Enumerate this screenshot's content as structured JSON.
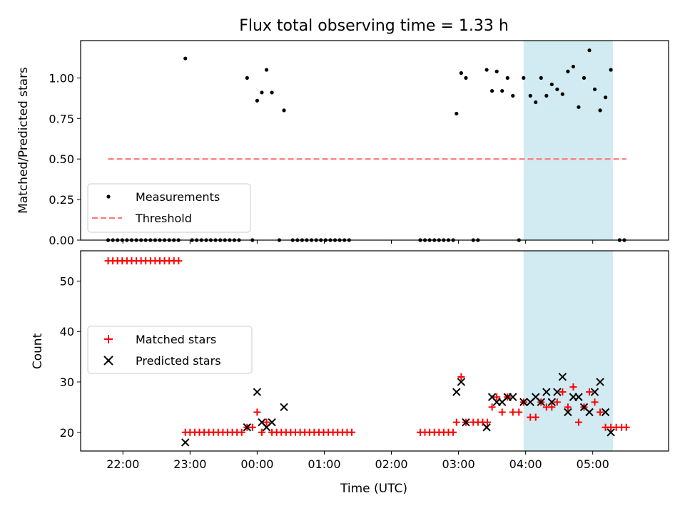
{
  "chart_data": [
    {
      "type": "scatter",
      "title": "Flux total observing time = 1.33 h",
      "xlabel": "",
      "ylabel": "Matched/Predicted stars",
      "xlim": [
        -1.63,
        7.13
      ],
      "ylim": [
        0.0,
        1.23
      ],
      "yticks": [
        0.0,
        0.25,
        0.5,
        0.75,
        1.0
      ],
      "ytick_labels": [
        "0.00",
        "0.25",
        "0.50",
        "0.75",
        "1.00"
      ],
      "xticks": [
        -1,
        0,
        1,
        2,
        3,
        4,
        5,
        6
      ],
      "highlight": {
        "x0": 4.97,
        "x1": 6.3,
        "color": "#add8e6"
      },
      "grid": false,
      "legend_position": "lower-left",
      "series": [
        {
          "name": "Measurements",
          "style": "dot",
          "color": "#000000",
          "points": [
            [
              -1.22,
              0
            ],
            [
              -1.15,
              0
            ],
            [
              -1.08,
              0
            ],
            [
              -1.01,
              0
            ],
            [
              -0.94,
              0
            ],
            [
              -0.87,
              0
            ],
            [
              -0.8,
              0
            ],
            [
              -0.73,
              0
            ],
            [
              -0.66,
              0
            ],
            [
              -0.59,
              0
            ],
            [
              -0.52,
              0
            ],
            [
              -0.45,
              0
            ],
            [
              -0.38,
              0
            ],
            [
              -0.31,
              0
            ],
            [
              -0.24,
              0
            ],
            [
              -0.17,
              0
            ],
            [
              -0.07,
              1.12
            ],
            [
              0.03,
              0
            ],
            [
              0.1,
              0
            ],
            [
              0.17,
              0
            ],
            [
              0.24,
              0
            ],
            [
              0.31,
              0
            ],
            [
              0.38,
              0
            ],
            [
              0.45,
              0
            ],
            [
              0.52,
              0
            ],
            [
              0.59,
              0
            ],
            [
              0.66,
              0
            ],
            [
              0.73,
              0
            ],
            [
              0.85,
              1.0
            ],
            [
              0.93,
              0
            ],
            [
              1.0,
              0.86
            ],
            [
              1.07,
              0.91
            ],
            [
              1.14,
              1.05
            ],
            [
              1.22,
              0.91
            ],
            [
              1.33,
              0
            ],
            [
              1.4,
              0.8
            ],
            [
              1.53,
              0
            ],
            [
              1.6,
              0
            ],
            [
              1.67,
              0
            ],
            [
              1.74,
              0
            ],
            [
              1.81,
              0
            ],
            [
              1.88,
              0
            ],
            [
              1.95,
              0
            ],
            [
              2.02,
              0
            ],
            [
              2.09,
              0
            ],
            [
              2.16,
              0
            ],
            [
              2.23,
              0
            ],
            [
              2.3,
              0
            ],
            [
              2.37,
              0
            ],
            [
              3.43,
              0
            ],
            [
              3.5,
              0
            ],
            [
              3.57,
              0
            ],
            [
              3.64,
              0
            ],
            [
              3.71,
              0
            ],
            [
              3.78,
              0
            ],
            [
              3.85,
              0
            ],
            [
              3.92,
              0
            ],
            [
              3.97,
              0.78
            ],
            [
              4.04,
              1.03
            ],
            [
              4.11,
              1.0
            ],
            [
              4.22,
              0
            ],
            [
              4.29,
              0
            ],
            [
              4.42,
              1.05
            ],
            [
              4.5,
              0.92
            ],
            [
              4.57,
              1.04
            ],
            [
              4.65,
              0.92
            ],
            [
              4.73,
              1.0
            ],
            [
              4.81,
              0.89
            ],
            [
              4.9,
              0
            ],
            [
              4.97,
              1.0
            ],
            [
              5.07,
              0.89
            ],
            [
              5.15,
              0.85
            ],
            [
              5.23,
              1.0
            ],
            [
              5.31,
              0.89
            ],
            [
              5.39,
              0.96
            ],
            [
              5.47,
              0.93
            ],
            [
              5.55,
              0.9
            ],
            [
              5.63,
              1.04
            ],
            [
              5.71,
              1.07
            ],
            [
              5.79,
              0.82
            ],
            [
              5.87,
              1.0
            ],
            [
              5.95,
              1.17
            ],
            [
              6.03,
              0.93
            ],
            [
              6.11,
              0.8
            ],
            [
              6.19,
              0.88
            ],
            [
              6.27,
              1.05
            ],
            [
              6.4,
              0
            ],
            [
              6.47,
              0
            ]
          ]
        },
        {
          "name": "Threshold",
          "style": "dashed-line",
          "color": "#ff7777",
          "points": [
            [
              -1.22,
              0.5
            ],
            [
              6.5,
              0.5
            ]
          ]
        }
      ]
    },
    {
      "type": "scatter",
      "title": "",
      "xlabel": "Time (UTC)",
      "ylabel": "Count",
      "xlim": [
        -1.63,
        7.13
      ],
      "ylim": [
        16.3,
        56.0
      ],
      "yticks": [
        20,
        30,
        40,
        50
      ],
      "ytick_labels": [
        "20",
        "30",
        "40",
        "50"
      ],
      "xticks": [
        -1,
        0,
        1,
        2,
        3,
        4,
        5,
        6
      ],
      "xtick_labels": [
        "22:00",
        "23:00",
        "00:00",
        "01:00",
        "02:00",
        "03:00",
        "04:00",
        "05:00"
      ],
      "highlight": {
        "x0": 4.97,
        "x1": 6.3,
        "color": "#add8e6"
      },
      "grid": false,
      "legend_position": "center-left",
      "series": [
        {
          "name": "Matched stars",
          "style": "plus",
          "color": "#ff0000",
          "points": [
            [
              -1.22,
              54
            ],
            [
              -1.15,
              54
            ],
            [
              -1.08,
              54
            ],
            [
              -1.01,
              54
            ],
            [
              -0.94,
              54
            ],
            [
              -0.87,
              54
            ],
            [
              -0.8,
              54
            ],
            [
              -0.73,
              54
            ],
            [
              -0.66,
              54
            ],
            [
              -0.59,
              54
            ],
            [
              -0.52,
              54
            ],
            [
              -0.45,
              54
            ],
            [
              -0.38,
              54
            ],
            [
              -0.31,
              54
            ],
            [
              -0.24,
              54
            ],
            [
              -0.17,
              54
            ],
            [
              -0.07,
              20
            ],
            [
              0.0,
              20
            ],
            [
              0.07,
              20
            ],
            [
              0.14,
              20
            ],
            [
              0.21,
              20
            ],
            [
              0.28,
              20
            ],
            [
              0.35,
              20
            ],
            [
              0.42,
              20
            ],
            [
              0.49,
              20
            ],
            [
              0.56,
              20
            ],
            [
              0.63,
              20
            ],
            [
              0.7,
              20
            ],
            [
              0.77,
              20
            ],
            [
              0.85,
              21
            ],
            [
              0.93,
              21
            ],
            [
              1.0,
              24
            ],
            [
              1.07,
              20
            ],
            [
              1.14,
              22
            ],
            [
              1.22,
              20
            ],
            [
              1.29,
              20
            ],
            [
              1.36,
              20
            ],
            [
              1.43,
              20
            ],
            [
              1.5,
              20
            ],
            [
              1.57,
              20
            ],
            [
              1.64,
              20
            ],
            [
              1.71,
              20
            ],
            [
              1.78,
              20
            ],
            [
              1.85,
              20
            ],
            [
              1.92,
              20
            ],
            [
              1.99,
              20
            ],
            [
              2.06,
              20
            ],
            [
              2.13,
              20
            ],
            [
              2.2,
              20
            ],
            [
              2.27,
              20
            ],
            [
              2.34,
              20
            ],
            [
              2.41,
              20
            ],
            [
              3.43,
              20
            ],
            [
              3.5,
              20
            ],
            [
              3.57,
              20
            ],
            [
              3.64,
              20
            ],
            [
              3.71,
              20
            ],
            [
              3.78,
              20
            ],
            [
              3.85,
              20
            ],
            [
              3.92,
              20
            ],
            [
              3.97,
              22
            ],
            [
              4.04,
              31
            ],
            [
              4.11,
              22
            ],
            [
              4.22,
              22
            ],
            [
              4.29,
              22
            ],
            [
              4.36,
              22
            ],
            [
              4.43,
              22
            ],
            [
              4.5,
              25
            ],
            [
              4.57,
              27
            ],
            [
              4.65,
              24
            ],
            [
              4.73,
              27
            ],
            [
              4.81,
              24
            ],
            [
              4.9,
              24
            ],
            [
              4.97,
              26
            ],
            [
              5.07,
              23
            ],
            [
              5.15,
              23
            ],
            [
              5.23,
              26
            ],
            [
              5.31,
              25
            ],
            [
              5.39,
              25
            ],
            [
              5.47,
              26
            ],
            [
              5.55,
              28
            ],
            [
              5.63,
              25
            ],
            [
              5.71,
              29
            ],
            [
              5.79,
              22
            ],
            [
              5.87,
              25
            ],
            [
              5.95,
              28
            ],
            [
              6.03,
              26
            ],
            [
              6.11,
              24
            ],
            [
              6.19,
              21
            ],
            [
              6.27,
              21
            ],
            [
              6.35,
              21
            ],
            [
              6.43,
              21
            ],
            [
              6.5,
              21
            ]
          ]
        },
        {
          "name": "Predicted stars",
          "style": "x",
          "color": "#000000",
          "points": [
            [
              -0.07,
              18
            ],
            [
              0.85,
              21
            ],
            [
              1.0,
              28
            ],
            [
              1.07,
              22
            ],
            [
              1.14,
              21
            ],
            [
              1.22,
              22
            ],
            [
              1.4,
              25
            ],
            [
              3.97,
              28
            ],
            [
              4.04,
              30
            ],
            [
              4.11,
              22
            ],
            [
              4.42,
              21
            ],
            [
              4.5,
              27
            ],
            [
              4.57,
              26
            ],
            [
              4.65,
              26
            ],
            [
              4.73,
              27
            ],
            [
              4.81,
              27
            ],
            [
              4.97,
              26
            ],
            [
              5.07,
              26
            ],
            [
              5.15,
              27
            ],
            [
              5.23,
              26
            ],
            [
              5.31,
              28
            ],
            [
              5.39,
              26
            ],
            [
              5.47,
              28
            ],
            [
              5.55,
              31
            ],
            [
              5.63,
              24
            ],
            [
              5.71,
              27
            ],
            [
              5.79,
              27
            ],
            [
              5.87,
              25
            ],
            [
              5.95,
              24
            ],
            [
              6.03,
              28
            ],
            [
              6.11,
              30
            ],
            [
              6.19,
              24
            ],
            [
              6.27,
              20
            ]
          ]
        }
      ]
    }
  ]
}
